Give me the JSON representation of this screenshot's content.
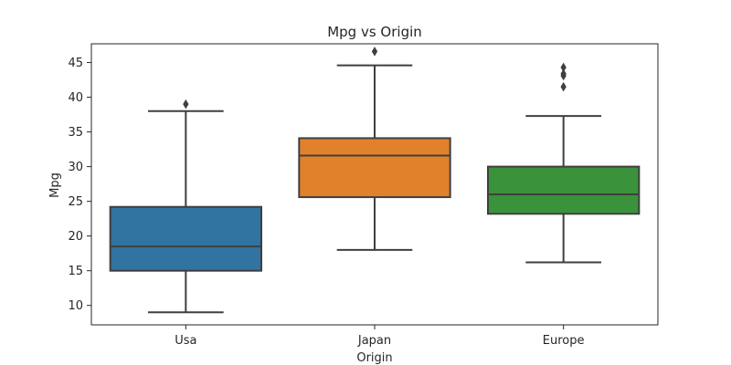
{
  "chart_data": {
    "type": "box",
    "title": "Mpg vs Origin",
    "xlabel": "Origin",
    "ylabel": "Mpg",
    "ylim": [
      7.2,
      47.7
    ],
    "yticks": [
      10,
      15,
      20,
      25,
      30,
      35,
      40,
      45
    ],
    "grid": false,
    "categories": [
      "Usa",
      "Japan",
      "Europe"
    ],
    "boxes": [
      {
        "category": "Usa",
        "color": "#3274a1",
        "whisker_low": 9.0,
        "q1": 15.0,
        "median": 18.5,
        "q3": 24.2,
        "whisker_high": 38.0,
        "outliers": [
          39.0
        ]
      },
      {
        "category": "Japan",
        "color": "#e1812c",
        "whisker_low": 18.0,
        "q1": 25.6,
        "median": 31.6,
        "q3": 34.1,
        "whisker_high": 44.6,
        "outliers": [
          46.6
        ]
      },
      {
        "category": "Europe",
        "color": "#3a923a",
        "whisker_low": 16.2,
        "q1": 23.2,
        "median": 26.0,
        "q3": 30.0,
        "whisker_high": 37.3,
        "outliers": [
          41.5,
          43.1,
          43.4,
          44.3
        ]
      }
    ]
  }
}
